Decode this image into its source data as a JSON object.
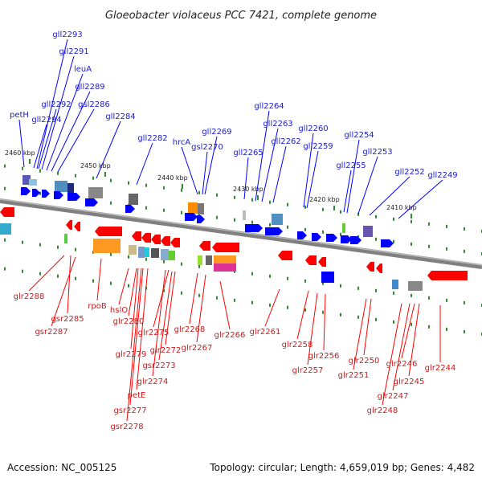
{
  "title": "Gloeobacter violaceus PCC 7421, complete genome",
  "footer": {
    "accession": "Accession: NC_005125",
    "topology": "Topology: circular; Length: 4,659,019 bp; Genes: 4,482"
  },
  "colors": {
    "forward": "#0000ff",
    "reverse": "#ff0000",
    "backbone": "#808080",
    "scale_tick": "#2e8b2e",
    "forward_label": "#1a1acc",
    "reverse_label": "#cc1a1a"
  },
  "scale_ticks": [
    "2460 kbp",
    "2450 kbp",
    "2440 kbp",
    "2430 kbp",
    "2420 kbp",
    "2410 kbp"
  ],
  "forward_genes": [
    "gll2293",
    "gll2291",
    "leuA",
    "gll2289",
    "petH",
    "gll2292",
    "gsl2286",
    "gll2294",
    "gll2284",
    "gll2282",
    "gll2269",
    "hrcA",
    "gsl2270",
    "gll2264",
    "gll2263",
    "gll2260",
    "gll2262",
    "gll2265",
    "gll2259",
    "gll2254",
    "gll2253",
    "gll2255",
    "gll2252",
    "gll2249"
  ],
  "reverse_genes": [
    "glr2288",
    "gsr2285",
    "gsr2287",
    "rpoB",
    "hslO",
    "glr2280",
    "glr2275",
    "glr2279",
    "glr2272",
    "gsr2273",
    "glr2274",
    "petE",
    "gsr2277",
    "gsr2278",
    "glr2268",
    "glr2267",
    "glr2266",
    "glr2261",
    "glr2258",
    "glr2256",
    "glr2257",
    "glr2250",
    "glr2251",
    "glr2246",
    "glr2245",
    "glr2247",
    "glr2248",
    "glr2244"
  ]
}
